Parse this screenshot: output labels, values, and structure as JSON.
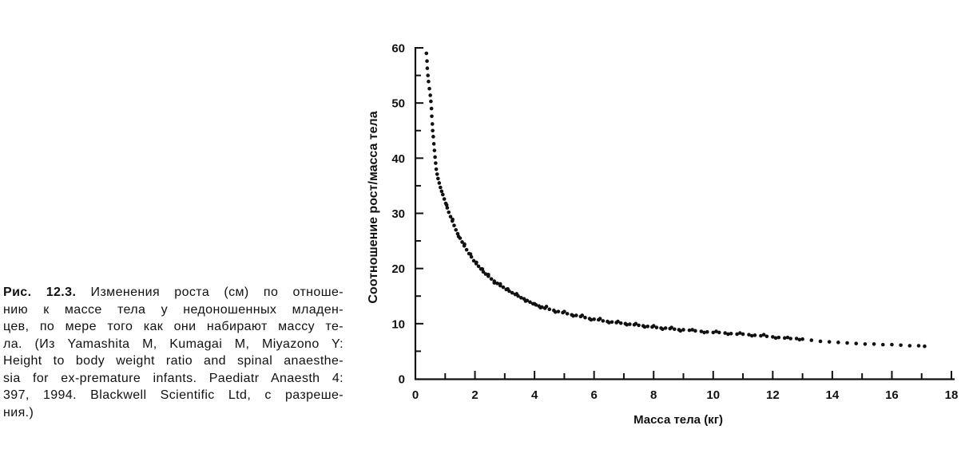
{
  "caption": {
    "label": "Рис. 12.3.",
    "first_line_rest": "Изменения роста (см) по отноше-",
    "lines": [
      "нию к массе тела у недоношенных младен-",
      "цев, по мере того как они набирают массу те-",
      "ла. (Из Yamashita M, Kumagai M, Miyazono Y:",
      "Height to body weight ratio and spinal anaesthe-",
      "sia for ex-premature infants. Paediatr Anaesth 4:",
      "397, 1994. Blackwell Scientific Ltd, с разреше-",
      "ния.)"
    ]
  },
  "colors": {
    "ink": "#111111",
    "paper": "#ffffff"
  },
  "chart_data": {
    "type": "scatter",
    "xlabel": "Масса тела (кг)",
    "ylabel": "Соотношение рост/масса тела",
    "xlim": [
      0,
      18
    ],
    "ylim": [
      0,
      60
    ],
    "x_ticks": [
      0,
      2,
      4,
      6,
      8,
      10,
      12,
      14,
      16,
      18
    ],
    "y_ticks": [
      0,
      10,
      20,
      30,
      40,
      50,
      60
    ],
    "minor_ticks": {
      "x": 1,
      "y": 5
    },
    "grid": false,
    "legend": "none",
    "points": [
      [
        0.37,
        59.0
      ],
      [
        0.39,
        57.6
      ],
      [
        0.4,
        56.3
      ],
      [
        0.42,
        55.0
      ],
      [
        0.44,
        53.9
      ],
      [
        0.47,
        52.6
      ],
      [
        0.5,
        51.4
      ],
      [
        0.52,
        50.3
      ],
      [
        0.54,
        49.0
      ],
      [
        0.55,
        47.6
      ],
      [
        0.57,
        46.2
      ],
      [
        0.58,
        45.0
      ],
      [
        0.6,
        43.9
      ],
      [
        0.62,
        42.6
      ],
      [
        0.64,
        41.4
      ],
      [
        0.66,
        40.2
      ],
      [
        0.68,
        39.1
      ],
      [
        0.7,
        38.0
      ],
      [
        0.73,
        37.1
      ],
      [
        0.76,
        36.3
      ],
      [
        0.8,
        35.5
      ],
      [
        0.84,
        34.7
      ],
      [
        0.88,
        34.0
      ],
      [
        0.92,
        33.4
      ],
      [
        0.97,
        32.6
      ],
      [
        1.02,
        31.8
      ],
      [
        1.05,
        31.5
      ],
      [
        1.07,
        31.0
      ],
      [
        1.12,
        30.2
      ],
      [
        1.18,
        29.4
      ],
      [
        1.24,
        28.6
      ],
      [
        1.25,
        28.9
      ],
      [
        1.3,
        27.8
      ],
      [
        1.36,
        27.0
      ],
      [
        1.42,
        26.3
      ],
      [
        1.45,
        25.8
      ],
      [
        1.5,
        25.5
      ],
      [
        1.57,
        24.8
      ],
      [
        1.64,
        24.1
      ],
      [
        1.65,
        24.4
      ],
      [
        1.72,
        23.4
      ],
      [
        1.8,
        22.7
      ],
      [
        1.85,
        22.6
      ],
      [
        1.88,
        22.1
      ],
      [
        1.96,
        21.4
      ],
      [
        2.04,
        20.9
      ],
      [
        2.05,
        21.1
      ],
      [
        2.12,
        20.4
      ],
      [
        2.2,
        19.9
      ],
      [
        2.25,
        19.9
      ],
      [
        2.28,
        19.4
      ],
      [
        2.36,
        19.0
      ],
      [
        2.45,
        18.6
      ],
      [
        2.45,
        18.9
      ],
      [
        2.55,
        18.1
      ],
      [
        2.65,
        17.7
      ],
      [
        2.65,
        17.4
      ],
      [
        2.75,
        17.3
      ],
      [
        2.85,
        16.9
      ],
      [
        2.85,
        17.2
      ],
      [
        2.95,
        16.6
      ],
      [
        3.05,
        16.2
      ],
      [
        3.1,
        16.3
      ],
      [
        3.15,
        15.9
      ],
      [
        3.25,
        15.6
      ],
      [
        3.35,
        15.3
      ],
      [
        3.4,
        15.4
      ],
      [
        3.45,
        15.0
      ],
      [
        3.55,
        14.7
      ],
      [
        3.65,
        14.5
      ],
      [
        3.7,
        14.1
      ],
      [
        3.75,
        14.2
      ],
      [
        3.85,
        13.9
      ],
      [
        3.95,
        13.6
      ],
      [
        4.0,
        13.6
      ],
      [
        4.05,
        13.4
      ],
      [
        4.15,
        13.2
      ],
      [
        4.2,
        12.9
      ],
      [
        4.25,
        13.0
      ],
      [
        4.35,
        12.8
      ],
      [
        4.4,
        13.1
      ],
      [
        4.5,
        12.6
      ],
      [
        4.65,
        12.4
      ],
      [
        4.7,
        12.1
      ],
      [
        4.8,
        12.2
      ],
      [
        4.95,
        12.0
      ],
      [
        5.0,
        12.2
      ],
      [
        5.1,
        11.8
      ],
      [
        5.25,
        11.6
      ],
      [
        5.3,
        11.4
      ],
      [
        5.4,
        11.5
      ],
      [
        5.55,
        11.3
      ],
      [
        5.6,
        11.5
      ],
      [
        5.7,
        11.1
      ],
      [
        5.85,
        10.9
      ],
      [
        5.9,
        10.7
      ],
      [
        6.0,
        10.8
      ],
      [
        6.15,
        10.7
      ],
      [
        6.2,
        10.9
      ],
      [
        6.3,
        10.5
      ],
      [
        6.45,
        10.4
      ],
      [
        6.5,
        10.2
      ],
      [
        6.6,
        10.3
      ],
      [
        6.75,
        10.2
      ],
      [
        6.8,
        10.4
      ],
      [
        6.9,
        10.1
      ],
      [
        7.05,
        10.0
      ],
      [
        7.1,
        9.8
      ],
      [
        7.2,
        9.9
      ],
      [
        7.35,
        9.8
      ],
      [
        7.4,
        10.0
      ],
      [
        7.5,
        9.7
      ],
      [
        7.65,
        9.6
      ],
      [
        7.7,
        9.4
      ],
      [
        7.8,
        9.5
      ],
      [
        7.95,
        9.4
      ],
      [
        8.0,
        9.6
      ],
      [
        8.1,
        9.3
      ],
      [
        8.25,
        9.2
      ],
      [
        8.3,
        9.0
      ],
      [
        8.4,
        9.2
      ],
      [
        8.55,
        9.1
      ],
      [
        8.6,
        9.3
      ],
      [
        8.7,
        9.0
      ],
      [
        8.85,
        8.9
      ],
      [
        8.9,
        8.7
      ],
      [
        9.0,
        8.9
      ],
      [
        9.2,
        8.8
      ],
      [
        9.3,
        8.9
      ],
      [
        9.4,
        8.7
      ],
      [
        9.6,
        8.6
      ],
      [
        9.7,
        8.4
      ],
      [
        9.8,
        8.5
      ],
      [
        10.0,
        8.4
      ],
      [
        10.1,
        8.6
      ],
      [
        10.2,
        8.4
      ],
      [
        10.4,
        8.3
      ],
      [
        10.5,
        8.1
      ],
      [
        10.6,
        8.2
      ],
      [
        10.8,
        8.1
      ],
      [
        10.9,
        8.3
      ],
      [
        11.0,
        8.1
      ],
      [
        11.2,
        8.0
      ],
      [
        11.3,
        7.8
      ],
      [
        11.4,
        7.9
      ],
      [
        11.6,
        7.8
      ],
      [
        11.7,
        8.0
      ],
      [
        11.8,
        7.7
      ],
      [
        12.0,
        7.6
      ],
      [
        12.1,
        7.4
      ],
      [
        12.2,
        7.5
      ],
      [
        12.4,
        7.4
      ],
      [
        12.5,
        7.5
      ],
      [
        12.6,
        7.3
      ],
      [
        12.8,
        7.3
      ],
      [
        12.9,
        7.1
      ],
      [
        13.0,
        7.2
      ],
      [
        13.3,
        7.0
      ],
      [
        13.6,
        6.8
      ],
      [
        13.9,
        6.7
      ],
      [
        14.2,
        6.6
      ],
      [
        14.5,
        6.5
      ],
      [
        14.8,
        6.4
      ],
      [
        15.1,
        6.3
      ],
      [
        15.4,
        6.3
      ],
      [
        15.7,
        6.2
      ],
      [
        16.0,
        6.2
      ],
      [
        16.3,
        6.1
      ],
      [
        16.6,
        6.0
      ],
      [
        16.9,
        6.0
      ],
      [
        17.1,
        5.9
      ]
    ]
  }
}
